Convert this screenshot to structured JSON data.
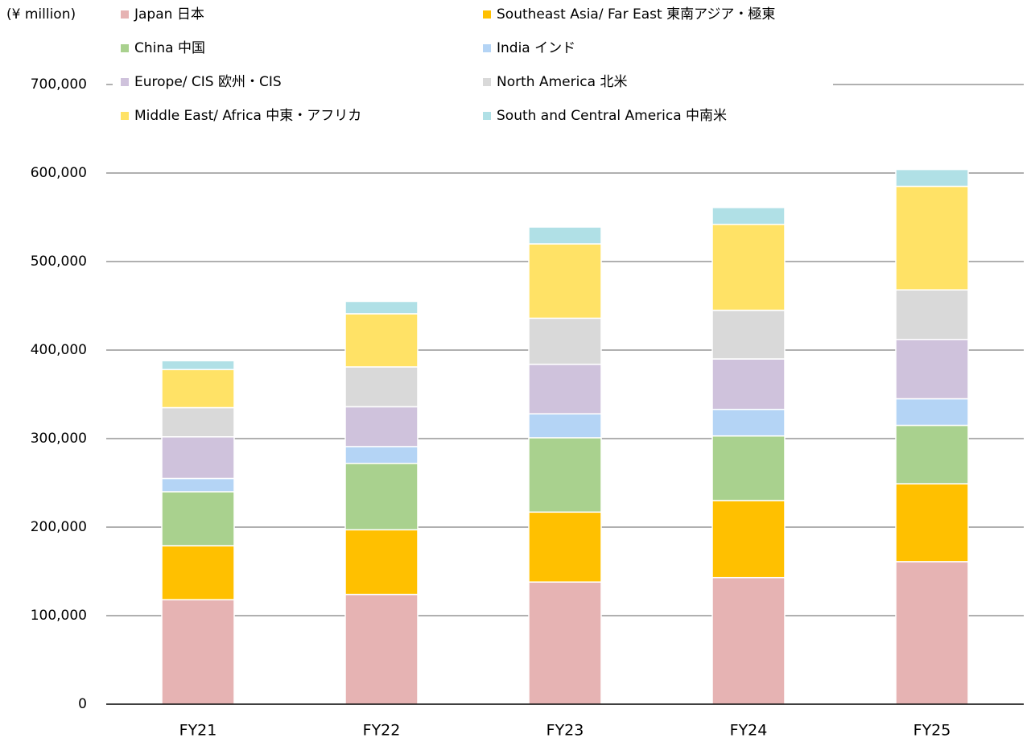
{
  "chart_data": {
    "type": "stacked_bar",
    "y_axis_label": "(¥ million)",
    "categories": [
      "FY21",
      "FY22",
      "FY23",
      "FY24",
      "FY25"
    ],
    "series": [
      {
        "name": "Japan 日本",
        "color": "#e6b3b3",
        "values": [
          118000,
          124000,
          138000,
          143000,
          161000
        ]
      },
      {
        "name": "Southeast Asia/ Far East 東南アジア・極東",
        "color": "#ffc000",
        "values": [
          61000,
          73000,
          79000,
          87000,
          88000
        ]
      },
      {
        "name": "China 中国",
        "color": "#a9d18e",
        "values": [
          61000,
          75000,
          84000,
          73000,
          66000
        ]
      },
      {
        "name": "India インド",
        "color": "#b4d4f5",
        "values": [
          15000,
          19000,
          27000,
          30000,
          30000
        ]
      },
      {
        "name": "Europe/ CIS 欧州・CIS",
        "color": "#cfc2dc",
        "values": [
          47000,
          45000,
          56000,
          57000,
          67000
        ]
      },
      {
        "name": "North America 北米",
        "color": "#d9d9d9",
        "values": [
          33000,
          45000,
          52000,
          55000,
          56000
        ]
      },
      {
        "name": "Middle East/ Africa 中東・アフリカ",
        "color": "#ffe266",
        "values": [
          43000,
          60000,
          84000,
          97000,
          117000
        ]
      },
      {
        "name": "South and Central America 中南米",
        "color": "#b0e0e6",
        "values": [
          10000,
          14000,
          19000,
          19000,
          19000
        ]
      }
    ],
    "ylim": [
      0,
      700000
    ],
    "yticks": [
      0,
      {
        "value": 100000,
        "label": "100,000"
      },
      {
        "value": 200000,
        "label": "200,000"
      },
      {
        "value": 300000,
        "label": "300,000"
      },
      {
        "value": 400000,
        "label": "400,000"
      },
      {
        "value": 500000,
        "label": "500,000"
      },
      {
        "value": 600000,
        "label": "600,000"
      },
      {
        "value": 700000,
        "label": "700,000"
      }
    ],
    "grid": true
  }
}
